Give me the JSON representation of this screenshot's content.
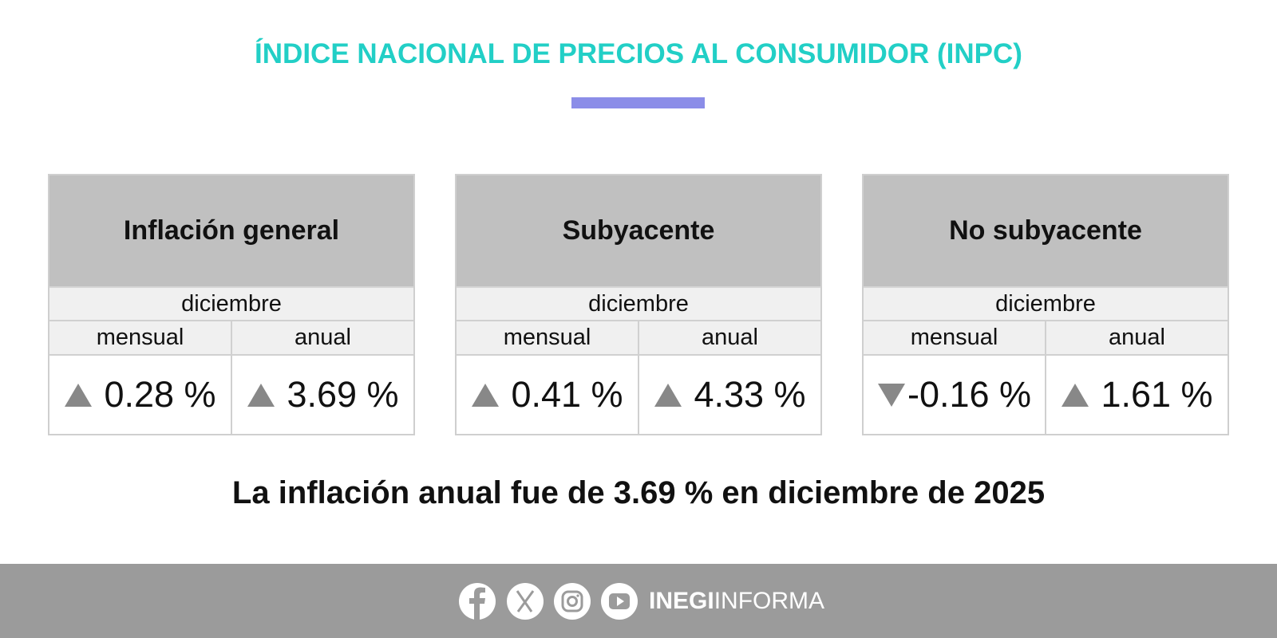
{
  "header": {
    "title": "ÍNDICE NACIONAL DE PRECIOS AL CONSUMIDOR (INPC)"
  },
  "cards": [
    {
      "title": "Inflación general",
      "period": "diciembre",
      "columns": [
        "mensual",
        "anual"
      ],
      "values": [
        "0.28 %",
        "3.69 %"
      ]
    },
    {
      "title": "Subyacente",
      "period": "diciembre",
      "columns": [
        "mensual",
        "anual"
      ],
      "values": [
        "0.41 %",
        "4.33 %"
      ]
    },
    {
      "title": "No subyacente",
      "period": "diciembre",
      "columns": [
        "mensual",
        "anual"
      ],
      "values": [
        "-0.16 %",
        "1.61 %"
      ]
    }
  ],
  "summary": "La inflación anual fue de 3.69 % en diciembre de 2025",
  "footer": {
    "brand_bold": "INEGI",
    "brand_light": "INFORMA"
  }
}
